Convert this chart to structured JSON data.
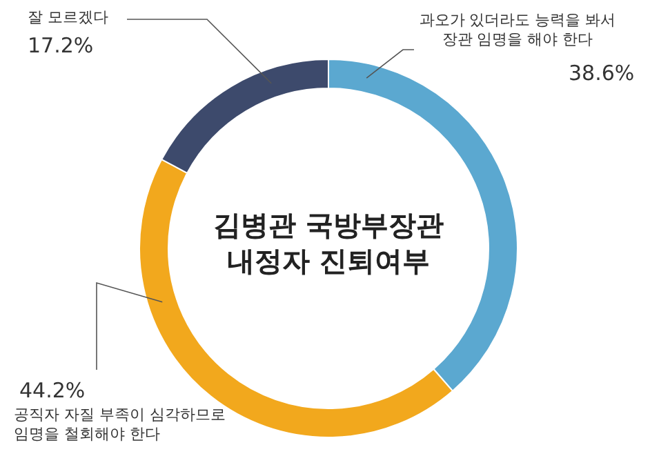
{
  "chart_data": {
    "type": "donut",
    "title": "김병관 국방부장관 내정자 진퇴여부",
    "categories": [
      "과오가 있더라도 능력을 봐서 장관 임명을 해야 한다",
      "공직자 자질 부족이 심각하므로 임명을 철회해야 한다",
      "잘 모르겠다"
    ],
    "values": [
      38.6,
      44.2,
      17.2
    ],
    "value_labels": [
      "38.6%",
      "44.2%",
      "17.2%"
    ],
    "colors": [
      "#5ba8d0",
      "#f2a81d",
      "#3d4a6c"
    ]
  }
}
